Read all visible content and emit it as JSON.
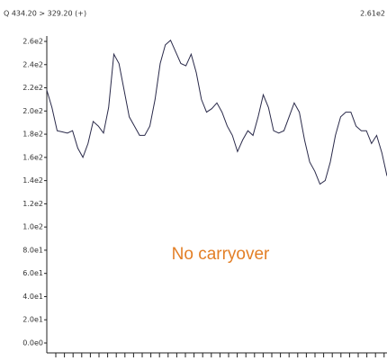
{
  "chart_data": {
    "type": "line",
    "header_left": "Q 434.20 > 329.20 (+)",
    "header_right": "2.61e2",
    "annotation": "No carryover",
    "color": "#2a2a4a",
    "values": [
      218,
      203,
      183,
      182,
      181,
      183,
      168,
      160,
      172,
      191,
      187,
      181,
      203,
      249,
      241,
      218,
      195,
      187,
      179,
      179,
      187,
      210,
      241,
      257,
      261,
      251,
      241,
      239,
      249,
      233,
      210,
      199,
      202,
      207,
      199,
      187,
      179,
      165,
      175,
      183,
      179,
      195,
      214,
      203,
      183,
      181,
      183,
      195,
      207,
      199,
      175,
      156,
      148,
      137,
      140,
      156,
      179,
      195,
      199,
      199,
      187,
      183,
      183,
      172,
      179,
      164,
      144
    ],
    "ylim": [
      0,
      260
    ],
    "yticks": [
      {
        "value": 0,
        "label": "0.0e0"
      },
      {
        "value": 20,
        "label": "2.0e1"
      },
      {
        "value": 40,
        "label": "4.0e1"
      },
      {
        "value": 60,
        "label": "6.0e1"
      },
      {
        "value": 80,
        "label": "8.0e1"
      },
      {
        "value": 100,
        "label": "1.0e2"
      },
      {
        "value": 120,
        "label": "1.2e2"
      },
      {
        "value": 140,
        "label": "1.4e2"
      },
      {
        "value": 160,
        "label": "1.6e2"
      },
      {
        "value": 180,
        "label": "1.8e2"
      },
      {
        "value": 200,
        "label": "2.0e2"
      },
      {
        "value": 220,
        "label": "2.2e2"
      },
      {
        "value": 240,
        "label": "2.4e2"
      },
      {
        "value": 260,
        "label": "2.6e2"
      }
    ]
  }
}
